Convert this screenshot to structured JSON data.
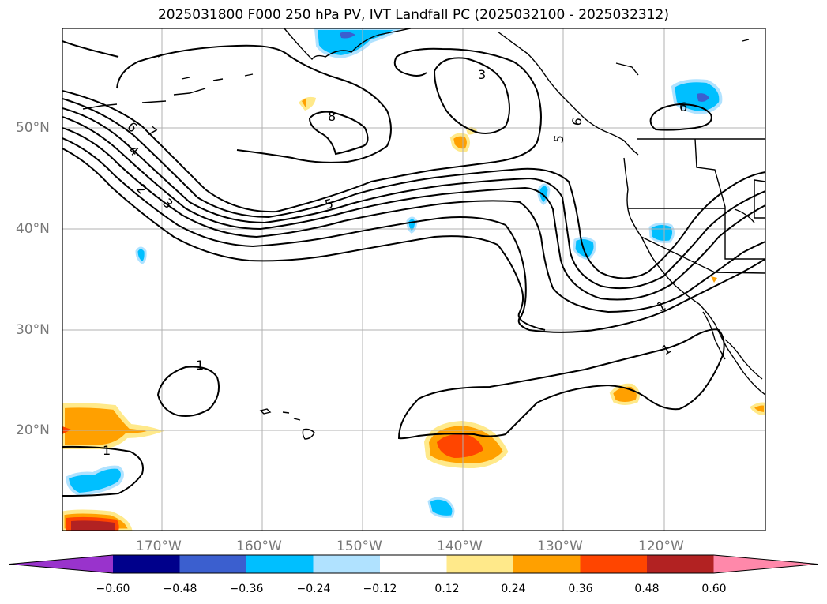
{
  "title": "2025031800 F000 250 hPa PV, IVT Landfall PC (2025032100 - 2025032312)",
  "map": {
    "lat_labels": [
      "50°N",
      "40°N",
      "30°N",
      "20°N"
    ],
    "lon_labels": [
      "170°W",
      "160°W",
      "150°W",
      "140°W",
      "130°W",
      "120°W"
    ],
    "contour_labels": [
      "8",
      "7",
      "6",
      "5",
      "5",
      "4",
      "3",
      "3",
      "2",
      "1",
      "1",
      "1",
      "1",
      "6",
      "6"
    ]
  },
  "colorbar": {
    "ticks": [
      "−0.60",
      "−0.48",
      "−0.36",
      "−0.24",
      "−0.12",
      "0.12",
      "0.24",
      "0.36",
      "0.48",
      "0.60"
    ],
    "colors": [
      "#9933cc",
      "#00008b",
      "#3b5fcf",
      "#00bfff",
      "#b0e2ff",
      "#ffffff",
      "#ffe98a",
      "#ffa000",
      "#ff4500",
      "#b22222",
      "#ff88aa"
    ]
  }
}
